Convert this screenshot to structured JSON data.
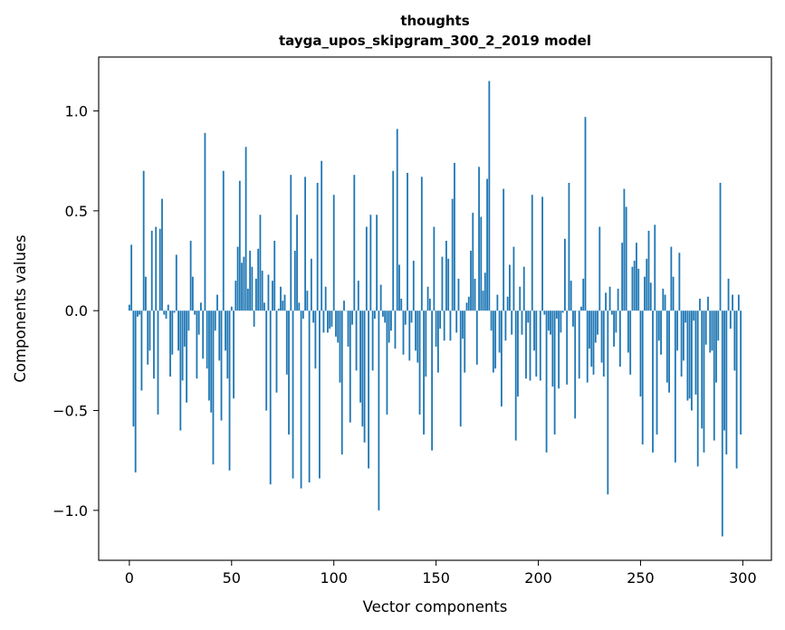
{
  "chart_data": {
    "type": "bar",
    "title": "thoughts",
    "subtitle": "tayga_upos_skipgram_300_2_2019 model",
    "xlabel": "Vector components",
    "ylabel": "Components values",
    "xlim": [
      -15,
      314
    ],
    "ylim": [
      -1.25,
      1.27
    ],
    "xticks": [
      0,
      50,
      100,
      150,
      200,
      250,
      300
    ],
    "yticks": [
      -1.0,
      -0.5,
      0.0,
      0.5,
      1.0
    ],
    "ytick_labels": [
      "−1.0",
      "−0.5",
      "0.0",
      "0.5",
      "1.0"
    ],
    "bar_color": "#1f77b4",
    "grid": false,
    "series": [
      {
        "values": [
          0.03,
          0.33,
          -0.58,
          -0.81,
          -0.03,
          -0.02,
          -0.4,
          0.7,
          0.17,
          -0.27,
          -0.2,
          0.4,
          -0.34,
          0.42,
          -0.52,
          0.41,
          0.56,
          -0.02,
          -0.04,
          0.03,
          -0.33,
          -0.22,
          -0.01,
          0.28,
          -0.2,
          -0.6,
          -0.35,
          -0.18,
          -0.46,
          -0.1,
          0.35,
          0.17,
          -0.02,
          -0.34,
          -0.12,
          0.04,
          -0.24,
          0.89,
          -0.29,
          -0.45,
          -0.51,
          -0.77,
          -0.1,
          0.08,
          -0.25,
          -0.55,
          0.7,
          -0.2,
          -0.34,
          -0.8,
          0.02,
          -0.44,
          0.15,
          0.32,
          0.65,
          0.24,
          0.27,
          0.82,
          0.11,
          0.3,
          0.22,
          -0.08,
          0.16,
          0.31,
          0.48,
          0.2,
          0.04,
          -0.5,
          0.18,
          -0.87,
          0.15,
          0.35,
          -0.41,
          0.01,
          0.12,
          0.05,
          0.08,
          -0.32,
          -0.62,
          0.68,
          -0.84,
          0.3,
          0.48,
          0.04,
          -0.89,
          -0.04,
          0.67,
          0.1,
          -0.86,
          0.26,
          -0.06,
          -0.29,
          0.64,
          -0.84,
          0.75,
          -0.11,
          0.12,
          -0.11,
          -0.09,
          -0.08,
          0.58,
          -0.13,
          -0.16,
          -0.36,
          -0.72,
          0.05,
          0.0,
          -0.18,
          -0.56,
          -0.07,
          0.68,
          -0.3,
          0.15,
          -0.46,
          -0.58,
          -0.66,
          0.42,
          -0.79,
          0.48,
          -0.3,
          -0.04,
          0.48,
          -1.0,
          0.13,
          -0.03,
          -0.06,
          -0.52,
          -0.16,
          -0.1,
          0.7,
          -0.19,
          0.91,
          0.23,
          0.06,
          -0.22,
          -0.07,
          0.69,
          -0.25,
          -0.06,
          0.25,
          -0.2,
          -0.26,
          -0.52,
          0.67,
          -0.62,
          -0.33,
          0.12,
          0.06,
          -0.7,
          0.42,
          -0.18,
          -0.31,
          -0.09,
          0.27,
          -0.15,
          0.35,
          0.26,
          -0.15,
          0.56,
          0.74,
          -0.11,
          0.16,
          -0.58,
          -0.14,
          -0.31,
          0.04,
          0.07,
          0.3,
          0.49,
          0.16,
          -0.27,
          0.72,
          0.47,
          0.1,
          0.19,
          0.66,
          1.15,
          -0.1,
          -0.31,
          -0.29,
          0.08,
          -0.21,
          -0.48,
          0.61,
          -0.15,
          0.07,
          0.23,
          -0.12,
          0.32,
          -0.65,
          -0.43,
          0.12,
          -0.12,
          0.22,
          -0.34,
          -0.06,
          -0.35,
          0.58,
          -0.2,
          -0.33,
          0.0,
          -0.35,
          0.57,
          -0.02,
          -0.71,
          -0.1,
          -0.12,
          -0.38,
          -0.62,
          -0.04,
          -0.39,
          -0.11,
          -0.01,
          0.36,
          -0.37,
          0.64,
          0.15,
          -0.08,
          -0.54,
          0.0,
          -0.34,
          0.02,
          0.16,
          0.97,
          -0.36,
          -0.19,
          -0.28,
          -0.32,
          -0.16,
          -0.12,
          0.42,
          -0.26,
          -0.33,
          0.09,
          -0.92,
          0.12,
          -0.02,
          -0.18,
          -0.11,
          0.11,
          -0.28,
          0.34,
          0.61,
          0.52,
          -0.21,
          -0.32,
          0.22,
          0.25,
          0.34,
          0.21,
          -0.43,
          -0.67,
          0.17,
          0.26,
          0.4,
          0.14,
          -0.71,
          0.43,
          -0.62,
          -0.15,
          -0.22,
          0.11,
          0.08,
          -0.36,
          -0.41,
          0.32,
          0.17,
          -0.76,
          -0.2,
          0.29,
          -0.33,
          -0.25,
          -0.06,
          -0.45,
          -0.44,
          -0.5,
          -0.05,
          -0.42,
          -0.78,
          0.06,
          -0.59,
          -0.71,
          -0.17,
          0.07,
          -0.21,
          -0.2,
          -0.65,
          -0.36,
          -0.15,
          0.64,
          -1.13,
          -0.6,
          -0.72,
          0.16,
          -0.09,
          0.08,
          -0.3,
          -0.79,
          0.08,
          -0.62
        ]
      }
    ]
  }
}
